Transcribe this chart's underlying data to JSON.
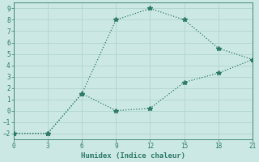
{
  "xlabel": "Humidex (Indice chaleur)",
  "line1_x": [
    0,
    3,
    6,
    9,
    12,
    15,
    18,
    21
  ],
  "line1_y": [
    -2,
    -2,
    1.5,
    8,
    9,
    8,
    5.5,
    4.5
  ],
  "line2_x": [
    0,
    3,
    6,
    9,
    12,
    15,
    18,
    21
  ],
  "line2_y": [
    -2,
    -2,
    1.5,
    0,
    0.2,
    2.5,
    3.3,
    4.5
  ],
  "line_color": "#2d7a6a",
  "bg_color": "#cce8e4",
  "grid_color": "#b0d4d0",
  "xlim": [
    0,
    21
  ],
  "ylim": [
    -2.5,
    9.5
  ],
  "xticks": [
    0,
    3,
    6,
    9,
    12,
    15,
    18,
    21
  ],
  "yticks": [
    -2,
    -1,
    0,
    1,
    2,
    3,
    4,
    5,
    6,
    7,
    8,
    9
  ],
  "marker": "*",
  "markersize": 4,
  "linewidth": 0.9
}
